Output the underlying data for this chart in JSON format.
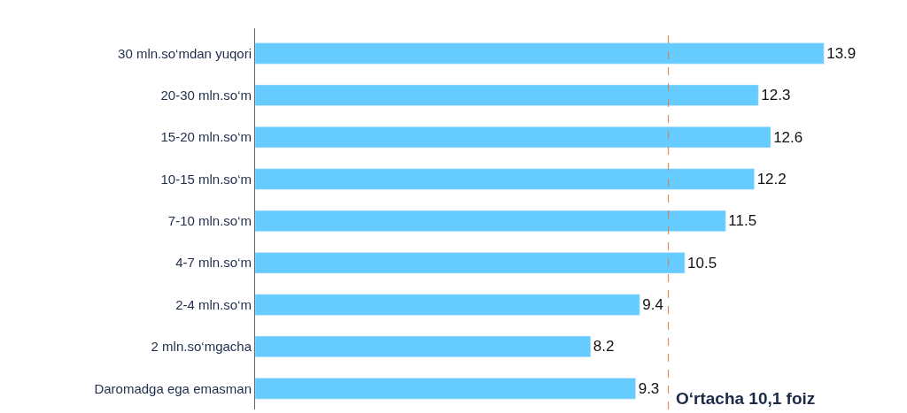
{
  "chart_data": {
    "type": "bar",
    "orientation": "horizontal",
    "categories": [
      "30 mln.so‘mdan yuqori",
      "20-30 mln.so‘m",
      "15-20 mln.so‘m",
      "10-15 mln.so‘m",
      "7-10 mln.so‘m",
      "4-7 mln.so‘m",
      "2-4 mln.so‘m",
      "2 mln.so‘mgacha",
      "Daromadga ega emasman"
    ],
    "values": [
      13.9,
      12.3,
      12.6,
      12.2,
      11.5,
      10.5,
      9.4,
      8.2,
      9.3
    ],
    "color": "#66ccff",
    "data_labels": true,
    "ref_lines": [
      {
        "axis": "x",
        "value": 10.1,
        "label": "O‘rtacha 10,1 foiz",
        "color": "#e07b39",
        "line_style": "dashed"
      }
    ]
  }
}
